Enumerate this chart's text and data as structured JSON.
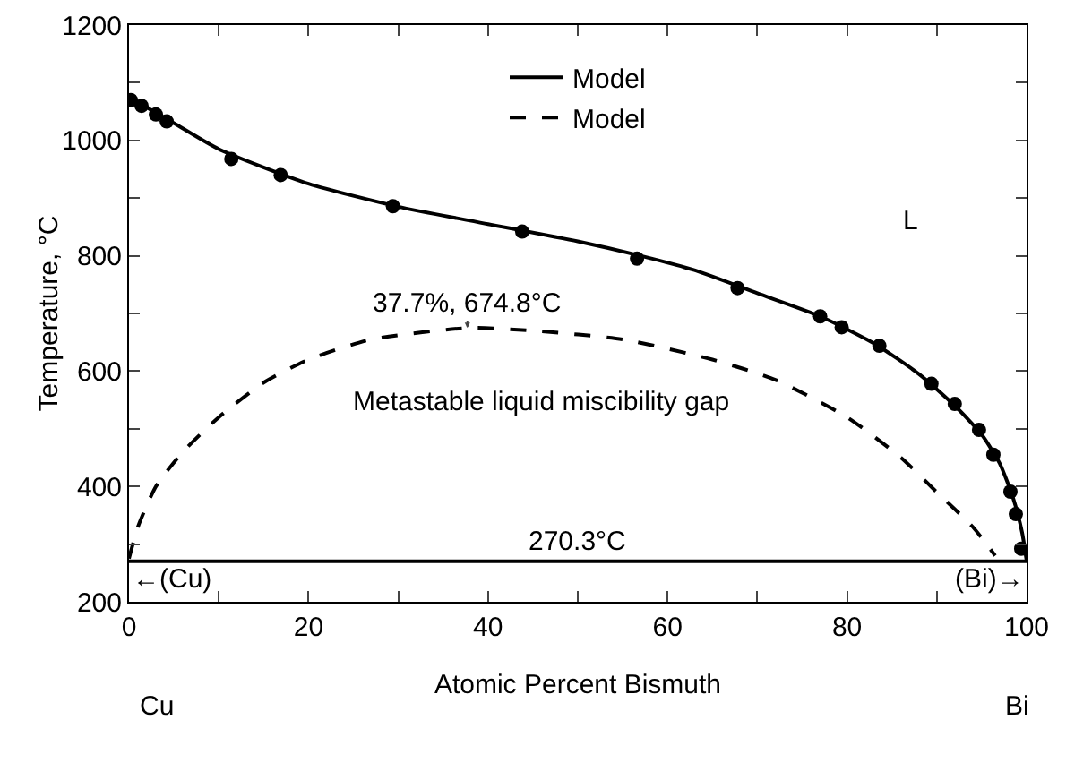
{
  "chart_data": {
    "type": "line",
    "xlabel": "Atomic Percent Bismuth",
    "ylabel": "Temperature, °C",
    "xlim": [
      0,
      100
    ],
    "xticks": [
      0,
      {
        "value": 10,
        "label": null
      },
      20,
      {
        "value": 30,
        "label": null
      },
      40,
      {
        "value": 50,
        "label": null
      },
      60,
      {
        "value": 70,
        "label": null
      },
      80,
      {
        "value": 90,
        "label": null
      },
      100
    ],
    "ylim": [
      200,
      1200
    ],
    "yticks": [
      200,
      {
        "value": 300,
        "label": null
      },
      400,
      {
        "value": 500,
        "label": null
      },
      600,
      {
        "value": 700,
        "label": null
      },
      800,
      {
        "value": 900,
        "label": null
      },
      1000,
      {
        "value": 1100,
        "label": null
      },
      1200
    ],
    "grid": false,
    "legend": "top",
    "series": [
      {
        "name": "Model",
        "line_style": "solid",
        "marker": "none",
        "color": "#000000",
        "x": [
          0,
          5,
          10,
          20,
          30,
          40,
          50,
          57,
          63,
          70,
          77,
          83,
          88,
          92,
          95,
          97,
          98.5,
          99.5,
          100
        ],
        "values": [
          1075,
          1030,
          985,
          925,
          885,
          855,
          825,
          800,
          775,
          735,
          695,
          648,
          595,
          540,
          490,
          440,
          380,
          320,
          271
        ]
      },
      {
        "name": "Model",
        "line_style": "dashed",
        "marker": "none",
        "color": "#000000",
        "x": [
          0,
          1,
          3,
          6,
          10,
          15,
          20,
          27,
          38,
          45,
          55,
          65,
          72,
          80,
          86,
          90,
          94,
          96.5
        ],
        "values": [
          275,
          330,
          400,
          460,
          520,
          580,
          620,
          655,
          675,
          670,
          655,
          620,
          585,
          520,
          450,
          390,
          330,
          280
        ]
      },
      {
        "type": "scatter",
        "marker": "circle",
        "color": "#000000",
        "x": [
          0.2,
          1.4,
          3,
          4.2,
          11.4,
          16.9,
          29.4,
          43.8,
          56.6,
          67.8,
          77,
          79.4,
          83.6,
          89.4,
          92,
          94.7,
          96.3,
          98.2,
          98.8,
          99.4
        ],
        "values": [
          1070,
          1060,
          1045,
          1033,
          968,
          940,
          886,
          842,
          795,
          744,
          695,
          676,
          644,
          578,
          543,
          498,
          455,
          391,
          352,
          292
        ]
      }
    ],
    "ref_lines": [
      {
        "axis": "y",
        "value": 270.3,
        "label": "270.3°C",
        "color": "#000000",
        "line_style": "solid"
      }
    ],
    "annotations": [
      {
        "text": "37.7%, 674.8°C",
        "x": 37.7,
        "y": 674.8
      },
      "Metastable liquid miscibility gap",
      "L",
      "←(Cu)",
      "(Bi)→",
      "Cu",
      "Bi"
    ]
  }
}
